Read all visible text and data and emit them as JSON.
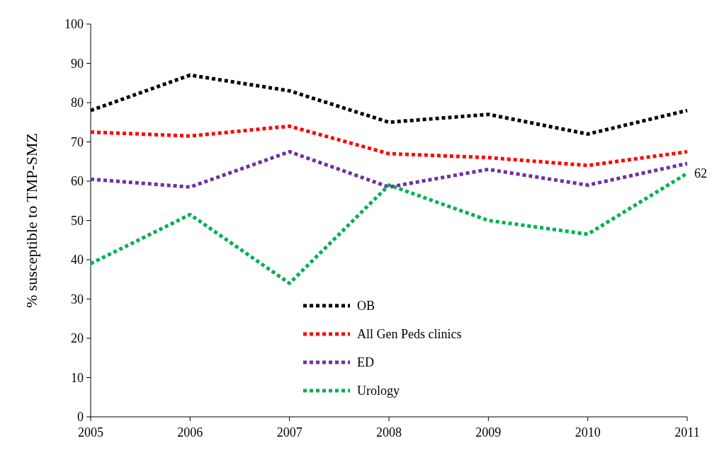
{
  "chart_data": {
    "type": "line",
    "ylabel": "% susceptible to TMP-SMZ",
    "categories": [
      "2005",
      "2006",
      "2007",
      "2008",
      "2009",
      "2010",
      "2011"
    ],
    "ylim": [
      0,
      100
    ],
    "yticks": [
      0,
      10,
      20,
      30,
      40,
      50,
      60,
      70,
      80,
      90,
      100
    ],
    "grid": false,
    "legend": "bottom",
    "line_style": "dotted",
    "marker": "none",
    "series": [
      {
        "name": "OB",
        "color": "#000000",
        "values": [
          78,
          87,
          83,
          75,
          77,
          72,
          78
        ]
      },
      {
        "name": "All Gen Peds clinics",
        "color": "#ff0000",
        "values": [
          72.5,
          71.5,
          74,
          67,
          66,
          64,
          67.5
        ]
      },
      {
        "name": "ED",
        "color": "#7030a0",
        "values": [
          60.5,
          58.5,
          67.5,
          58.5,
          63,
          59,
          64.5
        ]
      },
      {
        "name": "Urology",
        "color": "#00b050",
        "values": [
          39,
          51.5,
          34,
          59,
          50,
          46.5,
          62
        ],
        "value_labels": [
          null,
          null,
          null,
          null,
          null,
          null,
          "62"
        ]
      }
    ]
  }
}
